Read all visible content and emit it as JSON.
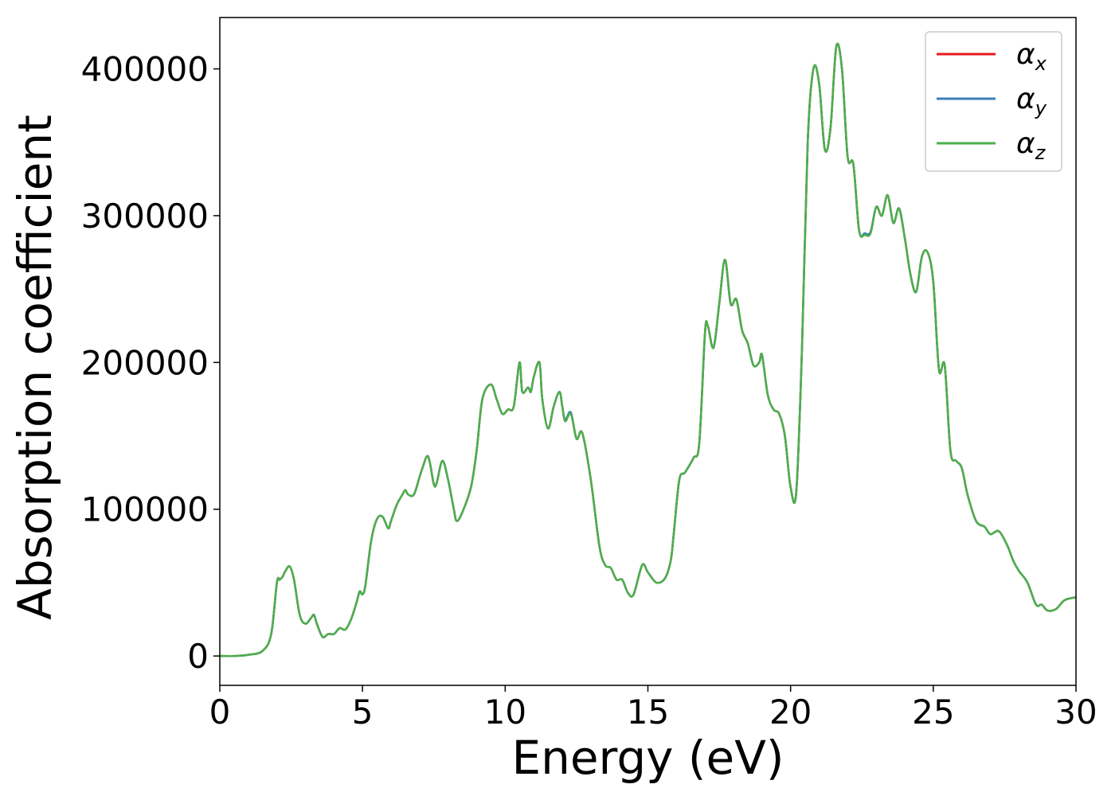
{
  "chart_data": {
    "type": "line",
    "xlabel": "Energy (eV)",
    "ylabel": "Absorption coefficient",
    "xlim": [
      0,
      30
    ],
    "ylim": [
      -20000,
      435000
    ],
    "x_ticks": [
      0,
      5,
      10,
      15,
      20,
      25,
      30
    ],
    "y_ticks": [
      0,
      100000,
      200000,
      300000,
      400000
    ],
    "grid": false,
    "legend_position": "top-right",
    "x": [
      0,
      0.5,
      1.0,
      1.5,
      1.8,
      2.0,
      2.1,
      2.2,
      2.3,
      2.45,
      2.6,
      2.8,
      3.0,
      3.2,
      3.3,
      3.4,
      3.6,
      3.8,
      4.0,
      4.2,
      4.4,
      4.6,
      4.8,
      4.9,
      5.0,
      5.1,
      5.3,
      5.5,
      5.7,
      5.9,
      6.0,
      6.2,
      6.4,
      6.5,
      6.6,
      6.8,
      7.0,
      7.1,
      7.3,
      7.5,
      7.6,
      7.8,
      8.0,
      8.2,
      8.3,
      8.5,
      8.8,
      9.0,
      9.2,
      9.5,
      9.7,
      9.9,
      10.1,
      10.3,
      10.5,
      10.6,
      10.8,
      10.9,
      11.0,
      11.2,
      11.3,
      11.5,
      11.7,
      11.9,
      12.0,
      12.1,
      12.3,
      12.5,
      12.7,
      13.0,
      13.3,
      13.5,
      13.7,
      13.9,
      14.1,
      14.3,
      14.5,
      14.8,
      15.0,
      15.3,
      15.6,
      15.8,
      15.9,
      16.1,
      16.3,
      16.6,
      16.8,
      17.0,
      17.1,
      17.3,
      17.5,
      17.7,
      17.9,
      18.1,
      18.3,
      18.5,
      18.7,
      18.9,
      19.0,
      19.2,
      19.4,
      19.6,
      19.8,
      20.0,
      20.2,
      20.4,
      20.6,
      20.8,
      21.0,
      21.2,
      21.4,
      21.6,
      21.8,
      22.0,
      22.2,
      22.4,
      22.6,
      22.8,
      23.0,
      23.2,
      23.4,
      23.6,
      23.8,
      24.0,
      24.2,
      24.4,
      24.6,
      24.8,
      25.0,
      25.2,
      25.4,
      25.6,
      25.8,
      26.0,
      26.2,
      26.5,
      26.8,
      27.0,
      27.3,
      27.6,
      27.8,
      28.0,
      28.3,
      28.6,
      28.8,
      29.0,
      29.3,
      29.6,
      30.0
    ],
    "series": [
      {
        "name": "α_x",
        "color": "#e41a1c",
        "values": [
          0,
          0,
          800,
          3500,
          15000,
          50000,
          52000,
          54000,
          58000,
          61000,
          52000,
          28000,
          22000,
          26000,
          28000,
          22000,
          13000,
          15000,
          15000,
          19000,
          18000,
          25000,
          37000,
          44000,
          42000,
          48000,
          78000,
          93000,
          95000,
          87000,
          92000,
          103000,
          110000,
          113000,
          110000,
          110000,
          122000,
          128000,
          136000,
          117000,
          118000,
          133000,
          120000,
          100000,
          92000,
          98000,
          115000,
          140000,
          175000,
          185000,
          175000,
          165000,
          168000,
          170000,
          200000,
          180000,
          183000,
          180000,
          190000,
          200000,
          175000,
          155000,
          170000,
          180000,
          170000,
          160000,
          165000,
          148000,
          152000,
          120000,
          75000,
          62000,
          60000,
          52000,
          52000,
          43000,
          42000,
          62000,
          57000,
          50000,
          53000,
          65000,
          82000,
          120000,
          125000,
          135000,
          145000,
          220000,
          225000,
          210000,
          240000,
          270000,
          240000,
          243000,
          222000,
          213000,
          198000,
          200000,
          205000,
          178000,
          168000,
          165000,
          150000,
          115000,
          112000,
          210000,
          350000,
          400000,
          390000,
          345000,
          360000,
          415000,
          400000,
          340000,
          335000,
          290000,
          287000,
          288000,
          306000,
          300000,
          314000,
          295000,
          305000,
          285000,
          260000,
          248000,
          272000,
          275000,
          255000,
          195000,
          198000,
          140000,
          133000,
          128000,
          110000,
          92000,
          88000,
          83000,
          85000,
          75000,
          65000,
          58000,
          50000,
          35000,
          35000,
          31000,
          32000,
          38000,
          40000
        ]
      },
      {
        "name": "α_y",
        "color": "#377eb8",
        "values": [
          0,
          0,
          800,
          3500,
          15000,
          50000,
          52000,
          54000,
          58000,
          61000,
          52000,
          28000,
          22000,
          26000,
          28000,
          22000,
          13000,
          15000,
          15000,
          19000,
          18000,
          25000,
          37000,
          44000,
          42000,
          48000,
          78000,
          93000,
          95000,
          87000,
          92000,
          103000,
          110000,
          113000,
          110000,
          110000,
          122000,
          128000,
          136000,
          117000,
          118000,
          133000,
          120000,
          100000,
          92000,
          98000,
          115000,
          140000,
          175000,
          185000,
          175000,
          165000,
          168000,
          170000,
          200000,
          180000,
          183000,
          180000,
          190000,
          200000,
          175000,
          155000,
          170000,
          180000,
          170000,
          161000,
          166000,
          148000,
          152000,
          120000,
          75000,
          62000,
          60000,
          52000,
          52000,
          43000,
          42000,
          62000,
          57000,
          50000,
          53000,
          65000,
          82000,
          120000,
          125000,
          135000,
          145000,
          220000,
          225000,
          210000,
          240000,
          270000,
          240000,
          243000,
          222000,
          213000,
          198000,
          200000,
          205000,
          178000,
          168000,
          165000,
          150000,
          115000,
          112000,
          210000,
          350000,
          400000,
          390000,
          345000,
          360000,
          415000,
          400000,
          340000,
          335000,
          290000,
          288000,
          289000,
          306000,
          300000,
          314000,
          295000,
          305000,
          285000,
          260000,
          248000,
          272000,
          275000,
          255000,
          195000,
          198000,
          140000,
          133000,
          128000,
          110000,
          92000,
          88000,
          83000,
          85000,
          75000,
          65000,
          58000,
          50000,
          35000,
          35000,
          31000,
          32000,
          38000,
          40000
        ]
      },
      {
        "name": "α_z",
        "color": "#4daf4a",
        "values": [
          0,
          0,
          800,
          3500,
          15000,
          50000,
          52000,
          54000,
          58000,
          61000,
          52000,
          28000,
          22000,
          26000,
          28000,
          22000,
          13000,
          15000,
          15000,
          19000,
          18000,
          25000,
          37000,
          44000,
          42000,
          48000,
          78000,
          93000,
          95000,
          87000,
          92000,
          103000,
          110000,
          113000,
          110000,
          110000,
          122000,
          128000,
          136000,
          117000,
          118000,
          133000,
          120000,
          100000,
          92000,
          98000,
          115000,
          140000,
          175000,
          185000,
          175000,
          165000,
          168000,
          170000,
          200000,
          180000,
          183000,
          180000,
          190000,
          200000,
          175000,
          155000,
          170000,
          180000,
          170000,
          160000,
          165000,
          148000,
          152000,
          120000,
          75000,
          62000,
          60000,
          52000,
          52000,
          43000,
          42000,
          62000,
          57000,
          50000,
          53000,
          65000,
          82000,
          120000,
          125000,
          135000,
          145000,
          220000,
          225000,
          210000,
          240000,
          270000,
          240000,
          243000,
          222000,
          213000,
          198000,
          200000,
          205000,
          178000,
          168000,
          165000,
          150000,
          115000,
          112000,
          210000,
          350000,
          400000,
          390000,
          345000,
          360000,
          415000,
          400000,
          340000,
          335000,
          290000,
          287000,
          288000,
          306000,
          300000,
          314000,
          295000,
          305000,
          285000,
          260000,
          248000,
          272000,
          275000,
          255000,
          195000,
          198000,
          140000,
          133000,
          128000,
          110000,
          92000,
          88000,
          83000,
          85000,
          75000,
          65000,
          58000,
          50000,
          35000,
          35000,
          31000,
          32000,
          38000,
          40000
        ]
      }
    ],
    "legend": [
      {
        "symbol": "α",
        "sub": "x",
        "color": "#e41a1c"
      },
      {
        "symbol": "α",
        "sub": "y",
        "color": "#377eb8"
      },
      {
        "symbol": "α",
        "sub": "z",
        "color": "#4daf4a"
      }
    ]
  }
}
